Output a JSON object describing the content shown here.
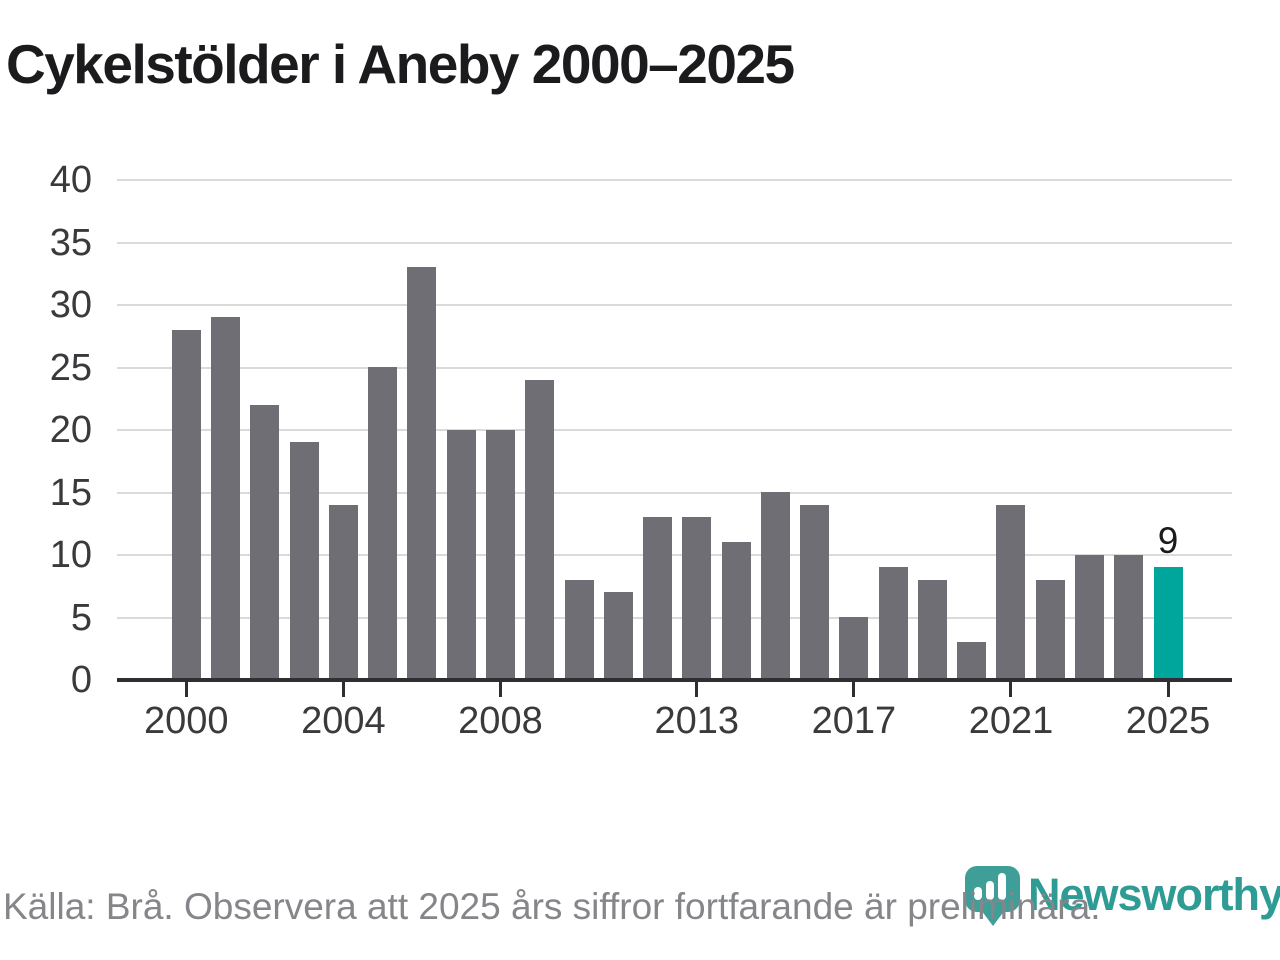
{
  "title": "Cykelstölder i Aneby 2000–2025",
  "footer": {
    "source_note": "Källa: Brå. Observera att 2025 års siffror fortfarande är preliminära."
  },
  "branding": {
    "logo_text": "Newsworthy",
    "logo_icon": "bar-chart-pin-icon"
  },
  "colors": {
    "bar_default": "#6f6e74",
    "bar_highlight": "#00a59b",
    "gridline": "#dadada",
    "axis_line": "#2f2f33",
    "axis_label": "#3a3a3d",
    "title_text": "#1b1b1d",
    "footer_text": "#85868a",
    "logo_teal": "#3f9e98",
    "wordmark_teal": "#2e9b94"
  },
  "chart_data": {
    "type": "bar",
    "title": "Cykelstölder i Aneby 2000–2025",
    "xlabel": "",
    "ylabel": "",
    "categories": [
      2000,
      2001,
      2002,
      2003,
      2004,
      2005,
      2006,
      2007,
      2008,
      2009,
      2010,
      2011,
      2012,
      2013,
      2014,
      2015,
      2016,
      2017,
      2018,
      2019,
      2020,
      2021,
      2022,
      2023,
      2024,
      2025
    ],
    "values": [
      28,
      29,
      22,
      19,
      14,
      25,
      33,
      20,
      20,
      24,
      8,
      7,
      13,
      13,
      11,
      15,
      14,
      5,
      9,
      8,
      3,
      14,
      8,
      10,
      10,
      9
    ],
    "highlight_index": 25,
    "annotation": {
      "index": 25,
      "label": "9"
    },
    "x_tick_years": [
      2000,
      2004,
      2008,
      2013,
      2017,
      2021,
      2025
    ],
    "x_tick_labels": [
      "2000",
      "2004",
      "2008",
      "2013",
      "2017",
      "2021",
      "2025"
    ],
    "y_ticks": [
      0,
      5,
      10,
      15,
      20,
      25,
      30,
      35,
      40
    ],
    "ylim": [
      0,
      40
    ],
    "grid": "horizontal",
    "legend": "none"
  }
}
